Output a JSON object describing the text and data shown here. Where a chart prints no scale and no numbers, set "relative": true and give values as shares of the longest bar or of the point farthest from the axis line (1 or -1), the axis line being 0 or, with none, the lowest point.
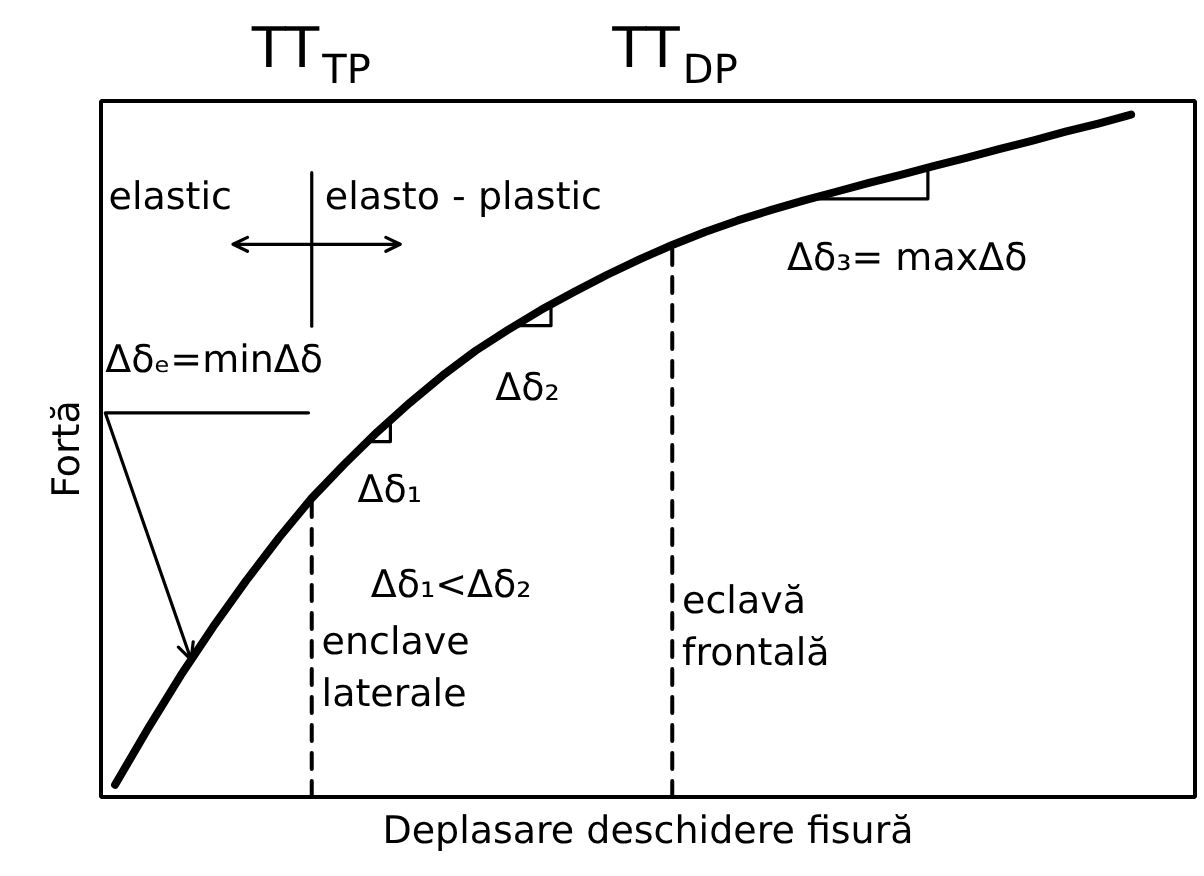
{
  "chart_data": {
    "type": "line",
    "relative": true,
    "xlabel": "Deplasare deschidere fisură",
    "ylabel": "Fortă",
    "categories": [
      null,
      null,
      null,
      null,
      null,
      null,
      null,
      null,
      null,
      null,
      null,
      null,
      null,
      null,
      null,
      null,
      null,
      null,
      null,
      null,
      null,
      null,
      null,
      null,
      null,
      null,
      null,
      null,
      null,
      null,
      null,
      null
    ],
    "series": [
      {
        "color": "#000000",
        "values": [
          0.018,
          0.1,
          0.178,
          0.25,
          0.317,
          0.38,
          0.438,
          0.488,
          0.535,
          0.578,
          0.618,
          0.654,
          0.685,
          0.714,
          0.74,
          0.765,
          0.788,
          0.809,
          0.828,
          0.845,
          0.86,
          0.874,
          0.887,
          0.9,
          0.912,
          0.925,
          0.937,
          0.95,
          0.962,
          0.975,
          0.987,
          1.0
        ]
      }
    ],
    "annotations": [
      "TT$_{TP}$",
      "TT$_{DP}$",
      "elastic",
      "elasto - plastic",
      "Δδₑ=minΔδ",
      "Δδ₁",
      "Δδ₂",
      "Δδ₃= maxΔδ",
      "Δδ₁<Δδ₂",
      "enclave\nlaterale",
      "eclavă\nfrontală"
    ]
  }
}
